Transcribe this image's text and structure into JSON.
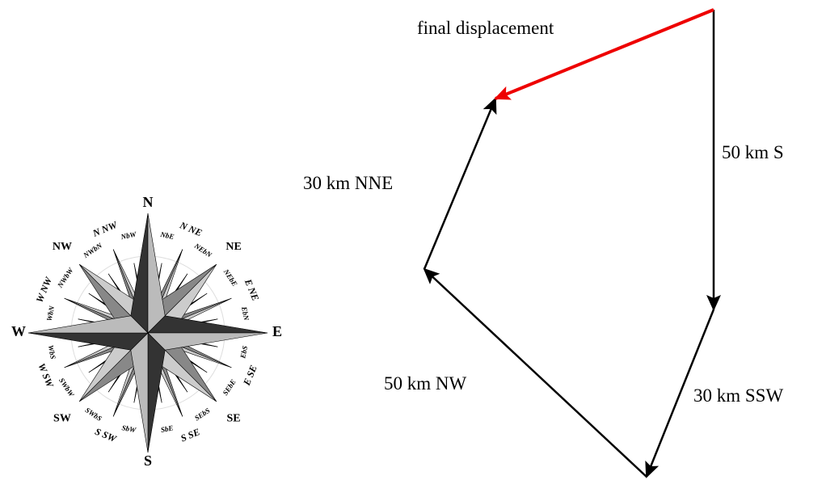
{
  "compass": {
    "points": [
      "N",
      "NbE",
      "N NE",
      "NEbN",
      "NE",
      "NEbE",
      "E NE",
      "EbN",
      "E",
      "EbS",
      "E SE",
      "SEbE",
      "SE",
      "SEbS",
      "S SE",
      "SbE",
      "S",
      "SbW",
      "S SW",
      "SWbS",
      "SW",
      "SWbW",
      "W SW",
      "WbS",
      "W",
      "WbN",
      "W NW",
      "NWbW",
      "NW",
      "NWbN",
      "N NW",
      "NbW"
    ]
  },
  "diagram": {
    "resultant": {
      "label": "final displacement"
    },
    "vectors": [
      {
        "label": "50 km S"
      },
      {
        "label": "30 km SSW"
      },
      {
        "label": "50 km NW"
      },
      {
        "label": "30 km NNE"
      }
    ]
  }
}
